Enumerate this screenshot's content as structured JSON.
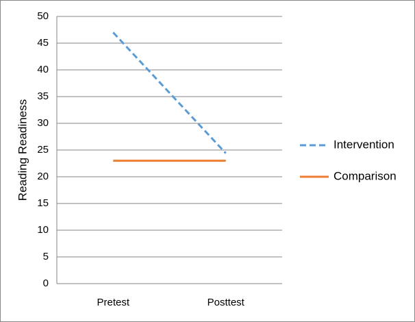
{
  "chart_data": {
    "type": "line",
    "y_label": "Reading Readiness",
    "categories": [
      "Pretest",
      "Posttest"
    ],
    "series": [
      {
        "name": "Intervention",
        "color": "#5b9bd5",
        "dash": true,
        "values": [
          47,
          24.4
        ]
      },
      {
        "name": "Comparison",
        "color": "#ed7d31",
        "dash": false,
        "values": [
          23,
          23
        ]
      }
    ],
    "ylim": [
      0,
      50
    ],
    "yticks": [
      0,
      5,
      10,
      15,
      20,
      25,
      30,
      35,
      40,
      45,
      50
    ],
    "grid": true,
    "legend": "right"
  }
}
